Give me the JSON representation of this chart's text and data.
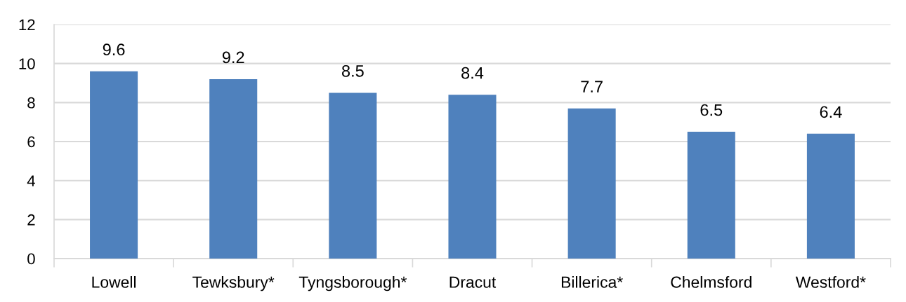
{
  "chart_data": {
    "type": "bar",
    "categories": [
      "Lowell",
      "Tewksbury*",
      "Tyngsborough*",
      "Dracut",
      "Billerica*",
      "Chelmsford",
      "Westford*"
    ],
    "values": [
      9.6,
      9.2,
      8.5,
      8.4,
      7.7,
      6.5,
      6.4
    ],
    "color": "#4f81bd",
    "ylim": [
      0,
      12
    ],
    "yticks": [
      0,
      2,
      4,
      6,
      8,
      10,
      12
    ],
    "grid": "y",
    "data_labels": true
  }
}
